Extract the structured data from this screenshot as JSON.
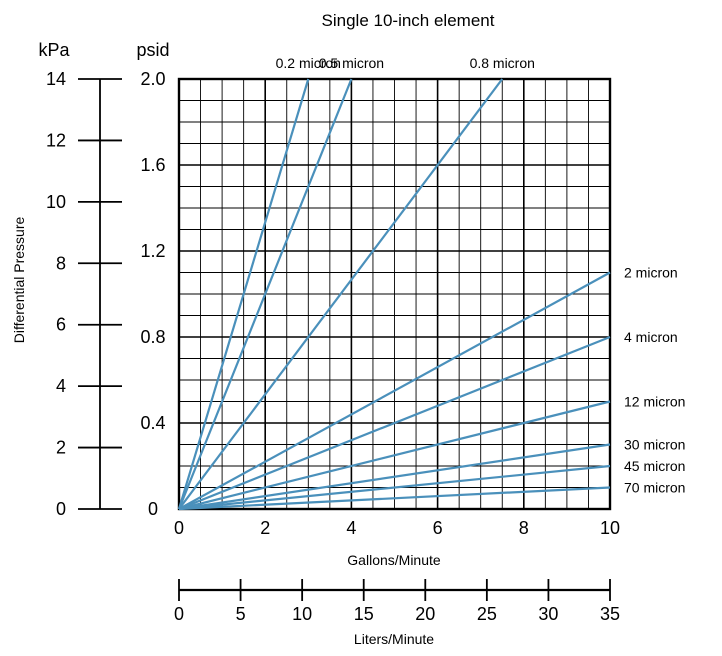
{
  "chart_data": {
    "type": "line",
    "title": "Single 10-inch element",
    "xlabel": "Gallons/Minute",
    "ylabel": "Differential Pressure",
    "xlim": [
      0,
      10
    ],
    "ylim": [
      0,
      2.0
    ],
    "grid": true,
    "colors": {
      "series": "#4a90bb",
      "grid": "#000000"
    },
    "y_units": {
      "primary": "psid",
      "secondary": "kPa"
    },
    "yticks": [
      "0",
      "0.4",
      "0.8",
      "1.2",
      "1.6",
      "2.0"
    ],
    "xticks": [
      "0",
      "2",
      "4",
      "6",
      "8",
      "10"
    ],
    "secondary_y_axis": {
      "unit": "kPa",
      "range": [
        0,
        14
      ],
      "ticks": [
        "0",
        "2",
        "4",
        "6",
        "8",
        "10",
        "12",
        "14"
      ]
    },
    "secondary_x_axis": {
      "label": "Liters/Minute",
      "range": [
        0,
        35
      ],
      "ticks": [
        "0",
        "5",
        "10",
        "15",
        "20",
        "25",
        "30",
        "35"
      ]
    },
    "series": [
      {
        "name": "0.2 micron",
        "x": [
          0,
          3
        ],
        "y": [
          0,
          2.0
        ],
        "label_position": "top"
      },
      {
        "name": "0.5 micron",
        "x": [
          0,
          4
        ],
        "y": [
          0,
          2.0
        ],
        "label_position": "top"
      },
      {
        "name": "0.8 micron",
        "x": [
          0,
          7.5
        ],
        "y": [
          0,
          2.0
        ],
        "label_position": "top"
      },
      {
        "name": "2 micron",
        "x": [
          0,
          10
        ],
        "y": [
          0,
          1.1
        ],
        "label_position": "right"
      },
      {
        "name": "4 micron",
        "x": [
          0,
          10
        ],
        "y": [
          0,
          0.8
        ],
        "label_position": "right"
      },
      {
        "name": "12 micron",
        "x": [
          0,
          10
        ],
        "y": [
          0,
          0.5
        ],
        "label_position": "right"
      },
      {
        "name": "30 micron",
        "x": [
          0,
          10
        ],
        "y": [
          0,
          0.3
        ],
        "label_position": "right"
      },
      {
        "name": "45 micron",
        "x": [
          0,
          10
        ],
        "y": [
          0,
          0.2
        ],
        "label_position": "right"
      },
      {
        "name": "70 micron",
        "x": [
          0,
          10
        ],
        "y": [
          0,
          0.1
        ],
        "label_position": "right"
      }
    ]
  }
}
